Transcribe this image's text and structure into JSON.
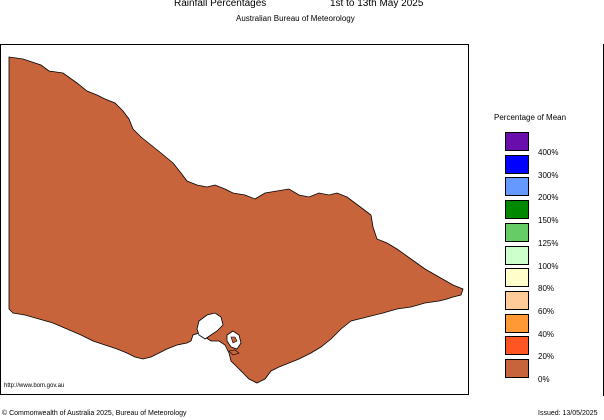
{
  "header": {
    "title": "Rainfall Percentages",
    "period": "1st to 13th May 2025",
    "subtitle": "Australian Bureau of Meteorology"
  },
  "map": {
    "region": "Victoria",
    "fill_color": "#C8643C",
    "fill_category": "0% to 20%",
    "url": "http://www.bom.gov.au"
  },
  "legend": {
    "title": "Percentage of Mean",
    "items": [
      {
        "label": "400%",
        "color": "#6A0DAD"
      },
      {
        "label": "300%",
        "color": "#0000FF"
      },
      {
        "label": "200%",
        "color": "#6699FF"
      },
      {
        "label": "150%",
        "color": "#008800"
      },
      {
        "label": "125%",
        "color": "#66CC66"
      },
      {
        "label": "100%",
        "color": "#CCFFCC"
      },
      {
        "label": "80%",
        "color": "#FFFFCC"
      },
      {
        "label": "60%",
        "color": "#FFCC99"
      },
      {
        "label": "40%",
        "color": "#FF9933"
      },
      {
        "label": "20%",
        "color": "#FF5522"
      },
      {
        "label": "0%",
        "color": "#C8643C"
      }
    ]
  },
  "footer": {
    "copyright": "© Commonwealth of Australia 2025, Bureau of Meteorology",
    "issued": "Issued: 13/05/2025"
  }
}
